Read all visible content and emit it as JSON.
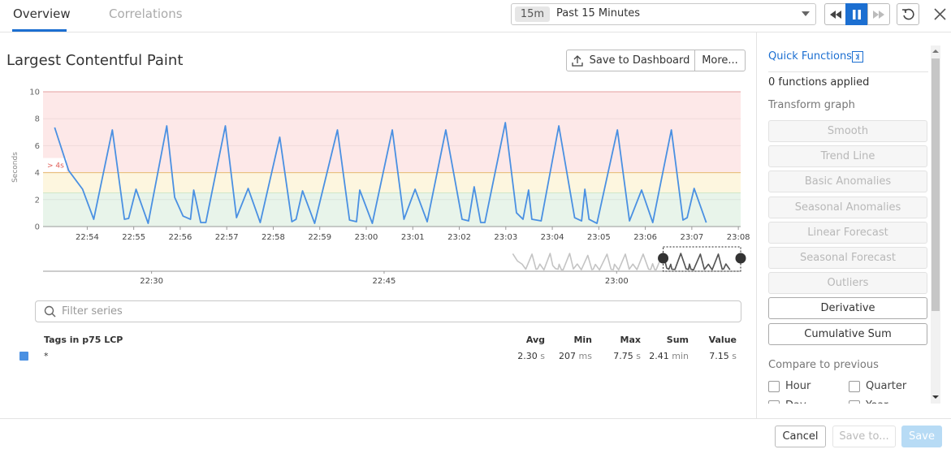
{
  "tabs": [
    "Overview",
    "Correlations"
  ],
  "time_range": {
    "badge": "15m",
    "label": "Past 15 Minutes"
  },
  "panel": {
    "title": "Largest Contentful Paint",
    "buttons": [
      "Save to Dashboard",
      "More..."
    ]
  },
  "chart_data": {
    "type": "line",
    "y_label": "Seconds",
    "ylim": [
      0,
      10
    ],
    "yticks": [
      0,
      2,
      4,
      6,
      8,
      10
    ],
    "xlim": [
      1373.05,
      1388.05
    ],
    "xticks": [
      {
        "value": 1374,
        "label": "22:54"
      },
      {
        "value": 1375,
        "label": "22:55"
      },
      {
        "value": 1376,
        "label": "22:56"
      },
      {
        "value": 1377,
        "label": "22:57"
      },
      {
        "value": 1378,
        "label": "22:58"
      },
      {
        "value": 1379,
        "label": "22:59"
      },
      {
        "value": 1380,
        "label": "23:00"
      },
      {
        "value": 1381,
        "label": "23:01"
      },
      {
        "value": 1382,
        "label": "23:02"
      },
      {
        "value": 1383,
        "label": "23:03"
      },
      {
        "value": 1384,
        "label": "23:04"
      },
      {
        "value": 1385,
        "label": "23:05"
      },
      {
        "value": 1386,
        "label": "23:06"
      },
      {
        "value": 1387,
        "label": "23:07"
      },
      {
        "value": 1388,
        "label": "23:08"
      }
    ],
    "grid": true,
    "bands": [
      {
        "from": 4,
        "to": 10,
        "color": "#fde8e8",
        "edge": "#f3a9a9"
      },
      {
        "from": 2.5,
        "to": 4,
        "color": "#fdf6df",
        "edge": "#f4c77a"
      },
      {
        "from": 0,
        "to": 2.5,
        "color": "#e8f4ea",
        "edge": "#cfe6c8"
      }
    ],
    "threshold_label": "> 4s",
    "series": [
      {
        "color": "#4a90e2",
        "x": [
          1373.3,
          1373.6,
          1373.9,
          1374.14,
          1374.54,
          1374.8,
          1374.89,
          1375.05,
          1375.31,
          1375.71,
          1375.88,
          1376.06,
          1376.22,
          1376.29,
          1376.44,
          1376.55,
          1376.97,
          1377.21,
          1377.46,
          1377.72,
          1378.14,
          1378.4,
          1378.49,
          1378.63,
          1378.89,
          1379.38,
          1379.64,
          1379.79,
          1379.86,
          1380.13,
          1380.56,
          1380.81,
          1381.05,
          1381.31,
          1381.71,
          1382.06,
          1382.2,
          1382.32,
          1382.46,
          1382.55,
          1382.99,
          1383.23,
          1383.37,
          1383.49,
          1383.56,
          1383.76,
          1384.14,
          1384.48,
          1384.63,
          1384.7,
          1384.79,
          1384.96,
          1385.4,
          1385.66,
          1385.92,
          1386.16,
          1386.56,
          1386.81,
          1386.9,
          1387.05,
          1387.31
        ],
        "values": [
          7.35,
          4.16,
          2.77,
          0.54,
          7.17,
          0.54,
          0.6,
          2.77,
          0.24,
          7.47,
          2.17,
          0.78,
          0.54,
          2.71,
          0.3,
          0.3,
          7.47,
          0.66,
          2.83,
          0.3,
          6.63,
          0.36,
          0.54,
          2.65,
          0.24,
          7.17,
          0.48,
          0.36,
          2.71,
          0.24,
          7.17,
          0.54,
          2.77,
          0.36,
          7.17,
          0.54,
          0.42,
          2.95,
          0.3,
          0.3,
          7.71,
          1.02,
          0.54,
          2.71,
          0.54,
          0.42,
          7.47,
          0.66,
          0.42,
          2.77,
          0.54,
          0.24,
          7.17,
          0.42,
          2.71,
          0.3,
          7.17,
          0.48,
          0.66,
          2.83,
          0.3
        ]
      }
    ],
    "navigator": {
      "xlim": [
        1343,
        1388
      ],
      "xticks": [
        {
          "value": 1350,
          "label": "22:30"
        },
        {
          "value": 1365,
          "label": "22:45"
        },
        {
          "value": 1380,
          "label": "23:00"
        }
      ],
      "selection": [
        1383,
        1388
      ]
    }
  },
  "filter_placeholder": "Filter series",
  "legend_table": {
    "header": [
      "Tags in p75 LCP",
      "Avg",
      "Min",
      "Max",
      "Sum",
      "Value"
    ],
    "rows": [
      {
        "color": "#4a90e2",
        "tag": "*",
        "cells": [
          {
            "value": "2.30",
            "unit": "s"
          },
          {
            "value": "207",
            "unit": "ms"
          },
          {
            "value": "7.75",
            "unit": "s"
          },
          {
            "value": "2.41",
            "unit": "min"
          },
          {
            "value": "7.15",
            "unit": "s"
          }
        ]
      }
    ]
  },
  "quick_functions": {
    "title": "Quick Functions",
    "applied": "0 functions applied",
    "transform_label": "Transform graph",
    "functions": [
      {
        "label": "Smooth",
        "enabled": false
      },
      {
        "label": "Trend Line",
        "enabled": false
      },
      {
        "label": "Basic Anomalies",
        "enabled": false
      },
      {
        "label": "Seasonal Anomalies",
        "enabled": false
      },
      {
        "label": "Linear Forecast",
        "enabled": false
      },
      {
        "label": "Seasonal Forecast",
        "enabled": false
      },
      {
        "label": "Outliers",
        "enabled": false
      },
      {
        "label": "Derivative",
        "enabled": true
      },
      {
        "label": "Cumulative Sum",
        "enabled": true
      }
    ],
    "compare_label": "Compare to previous",
    "compare": [
      "Hour",
      "Quarter",
      "Day",
      "Year"
    ]
  },
  "footer": {
    "buttons": [
      "Cancel",
      "Save to...",
      "Save"
    ]
  }
}
